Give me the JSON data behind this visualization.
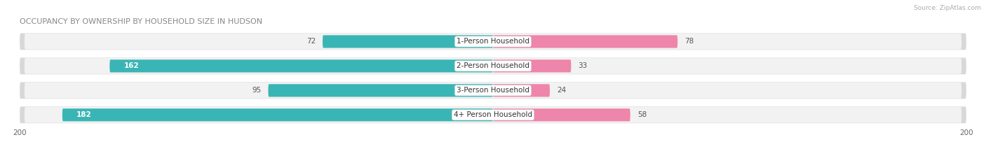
{
  "title": "OCCUPANCY BY OWNERSHIP BY HOUSEHOLD SIZE IN HUDSON",
  "source": "Source: ZipAtlas.com",
  "categories": [
    "1-Person Household",
    "2-Person Household",
    "3-Person Household",
    "4+ Person Household"
  ],
  "owner_values": [
    72,
    162,
    95,
    182
  ],
  "renter_values": [
    78,
    33,
    24,
    58
  ],
  "owner_color_light": "#7dd4d4",
  "owner_color_dark": "#3ab5b5",
  "renter_color_light": "#f5b8cc",
  "renter_color_dark": "#ee85aa",
  "row_bg_color": "#e8e8e8",
  "row_inner_color": "#f5f5f5",
  "max_val": 200,
  "figsize": [
    14.06,
    2.33
  ],
  "dpi": 100,
  "bg_color": "#ffffff"
}
